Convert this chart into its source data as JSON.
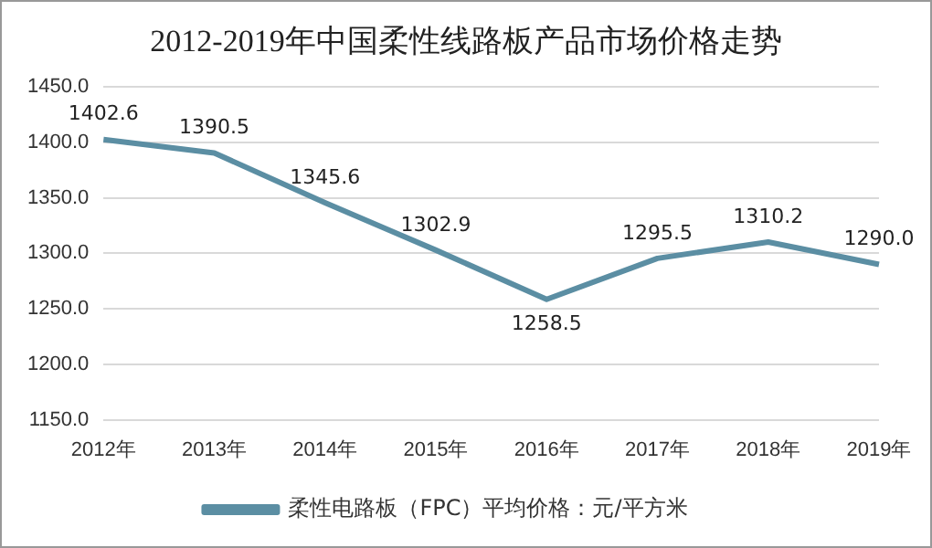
{
  "chart_data": {
    "type": "line",
    "title": "2012-2019年中国柔性线路板产品市场价格走势",
    "categories": [
      "2012年",
      "2013年",
      "2014年",
      "2015年",
      "2016年",
      "2017年",
      "2018年",
      "2019年"
    ],
    "series": [
      {
        "name": "柔性电路板（FPC）平均价格：元/平方米",
        "color": "#5b8ea3",
        "values": [
          1402.6,
          1390.5,
          1345.6,
          1302.9,
          1258.5,
          1295.5,
          1310.2,
          1290.0
        ],
        "value_labels": [
          "1402.6",
          "1390.5",
          "1345.6",
          "1302.9",
          "1258.5",
          "1295.5",
          "1310.2",
          "1290.0"
        ]
      }
    ],
    "ylim": [
      1150,
      1450
    ],
    "yticks": [
      {
        "value": 1150,
        "label": "1150.0"
      },
      {
        "value": 1200,
        "label": "1200.0"
      },
      {
        "value": 1250,
        "label": "1250.0"
      },
      {
        "value": 1300,
        "label": "1300.0"
      },
      {
        "value": 1350,
        "label": "1350.0"
      },
      {
        "value": 1400,
        "label": "1400.0"
      },
      {
        "value": 1450,
        "label": "1450.0"
      }
    ],
    "grid": "y",
    "legend": "bottom",
    "marker": "none",
    "line_style": "solid"
  }
}
